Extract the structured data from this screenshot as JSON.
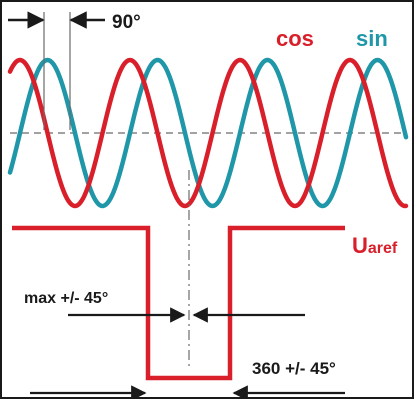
{
  "labels": {
    "phase_shift": "90°",
    "cos": "cos",
    "sin": "sin",
    "uaref_main": "U",
    "uaref_sub": "aref",
    "pulse_width": "max +/- 45°",
    "period": "360 +/- 45°"
  },
  "colors": {
    "cos": "#d81f2a",
    "sin": "#1f97a8",
    "pulse": "#d81f2a",
    "annotation": "#1a1a1a",
    "reference": "#6b6b6b"
  },
  "signals": {
    "period_deg": 360,
    "sin_lags_cos_by_deg": 90,
    "visible_periods": 3.6
  }
}
